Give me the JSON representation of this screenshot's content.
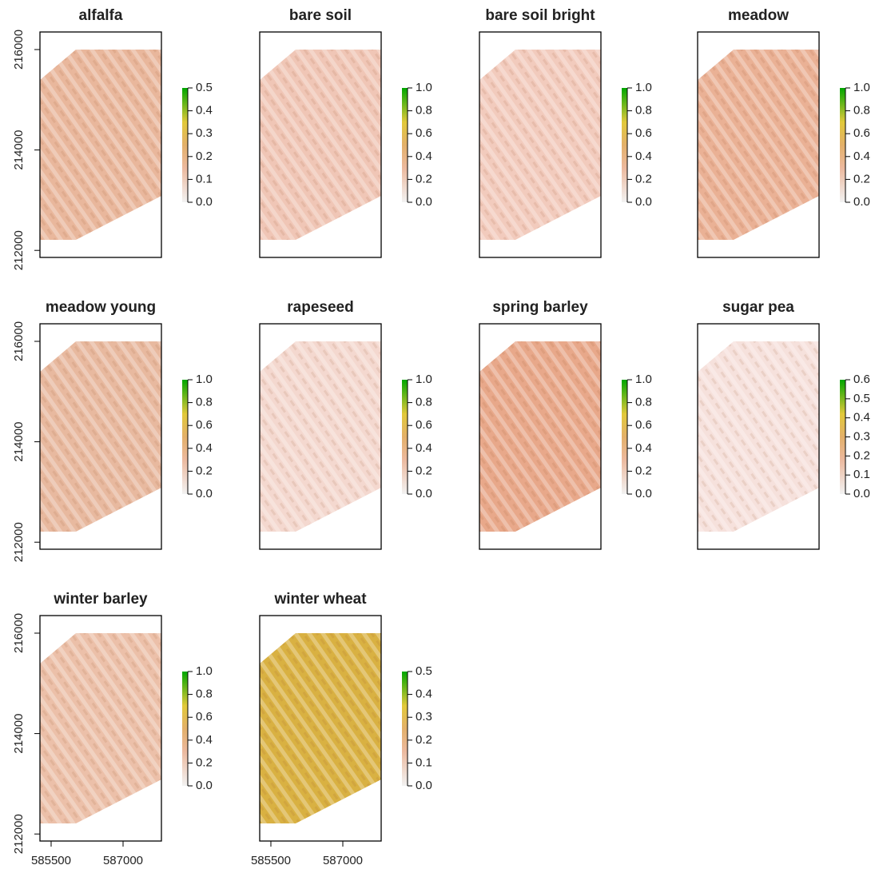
{
  "chart_data": [
    {
      "type": "raster",
      "title": "alfalfa",
      "color": "#e9b79c",
      "xlim": [
        585267,
        587800
      ],
      "ylim": [
        211860,
        216350
      ],
      "yticks": [
        212000,
        214000,
        216000
      ],
      "zlim": [
        0,
        0.5
      ],
      "zticks": [
        {
          "value": 0,
          "label": "0.0"
        },
        0.1,
        0.2,
        0.3,
        0.4,
        0.5
      ]
    },
    {
      "type": "raster",
      "title": "bare soil",
      "color": "#f0c6b6",
      "xlim": [
        585267,
        587800
      ],
      "ylim": [
        211860,
        216350
      ],
      "zlim": [
        0,
        1
      ],
      "zticks": [
        {
          "value": 0,
          "label": "0.0"
        },
        0.2,
        0.4,
        0.6,
        0.8,
        {
          "value": 1,
          "label": "1.0"
        }
      ]
    },
    {
      "type": "raster",
      "title": "bare soil bright",
      "color": "#f2cbbd",
      "xlim": [
        585267,
        587800
      ],
      "ylim": [
        211860,
        216350
      ],
      "zlim": [
        0,
        1
      ],
      "zticks": [
        {
          "value": 0,
          "label": "0.0"
        },
        0.2,
        0.4,
        0.6,
        0.8,
        {
          "value": 1,
          "label": "1.0"
        }
      ]
    },
    {
      "type": "raster",
      "title": "meadow",
      "color": "#eab195",
      "xlim": [
        585267,
        587800
      ],
      "ylim": [
        211860,
        216350
      ],
      "zlim": [
        0,
        1
      ],
      "zticks": [
        {
          "value": 0,
          "label": "0.0"
        },
        0.2,
        0.4,
        0.6,
        0.8,
        {
          "value": 1,
          "label": "1.0"
        }
      ]
    },
    {
      "type": "raster",
      "title": "meadow young",
      "color": "#e8b99f",
      "xlim": [
        585267,
        587800
      ],
      "ylim": [
        211860,
        216350
      ],
      "yticks": [
        212000,
        214000,
        216000
      ],
      "zlim": [
        0,
        1
      ],
      "zticks": [
        {
          "value": 0,
          "label": "0.0"
        },
        0.2,
        0.4,
        0.6,
        0.8,
        {
          "value": 1,
          "label": "1.0"
        }
      ]
    },
    {
      "type": "raster",
      "title": "rapeseed",
      "color": "#f4d8cf",
      "xlim": [
        585267,
        587800
      ],
      "ylim": [
        211860,
        216350
      ],
      "zlim": [
        0,
        1
      ],
      "zticks": [
        {
          "value": 0,
          "label": "0.0"
        },
        0.2,
        0.4,
        0.6,
        0.8,
        {
          "value": 1,
          "label": "1.0"
        }
      ]
    },
    {
      "type": "raster",
      "title": "spring barley",
      "color": "#e8a88a",
      "xlim": [
        585267,
        587800
      ],
      "ylim": [
        211860,
        216350
      ],
      "zlim": [
        0,
        1
      ],
      "zticks": [
        {
          "value": 0,
          "label": "0.0"
        },
        0.2,
        0.4,
        0.6,
        0.8,
        {
          "value": 1,
          "label": "1.0"
        }
      ]
    },
    {
      "type": "raster",
      "title": "sugar pea",
      "color": "#f6e1dc",
      "xlim": [
        585267,
        587800
      ],
      "ylim": [
        211860,
        216350
      ],
      "zlim": [
        0,
        0.6
      ],
      "zticks": [
        {
          "value": 0,
          "label": "0.0"
        },
        0.1,
        0.2,
        0.3,
        0.4,
        0.5,
        0.6
      ]
    },
    {
      "type": "raster",
      "title": "winter barley",
      "color": "#ecc0a9",
      "xlim": [
        585267,
        587800
      ],
      "ylim": [
        211860,
        216350
      ],
      "xticks": [
        585500,
        587000
      ],
      "yticks": [
        212000,
        214000,
        216000
      ],
      "zlim": [
        0,
        1
      ],
      "zticks": [
        {
          "value": 0,
          "label": "0.0"
        },
        0.2,
        0.4,
        0.6,
        0.8,
        {
          "value": 1,
          "label": "1.0"
        }
      ]
    },
    {
      "type": "raster",
      "title": "winter wheat",
      "color": "#d9b142",
      "xlim": [
        585267,
        587800
      ],
      "ylim": [
        211860,
        216350
      ],
      "xticks": [
        585500,
        587000
      ],
      "zlim": [
        0,
        0.5
      ],
      "zticks": [
        {
          "value": 0,
          "label": "0.0"
        },
        0.1,
        0.2,
        0.3,
        0.4,
        0.5
      ]
    }
  ]
}
